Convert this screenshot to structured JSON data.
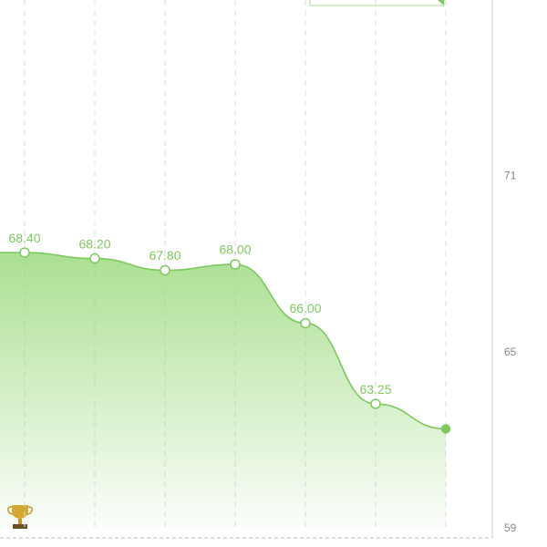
{
  "chart_data": {
    "type": "line",
    "categories": [
      null,
      null,
      null,
      null,
      null,
      null,
      null
    ],
    "values": [
      68.4,
      68.2,
      67.8,
      68.0,
      66.0,
      63.25,
      62.4
    ],
    "value_labels": [
      "68.40",
      "68.20",
      "67.80",
      "68.00",
      "66.00",
      "63.25",
      null
    ],
    "color": "#7dc95e",
    "ylim": [
      59,
      77
    ],
    "yticks": [
      59,
      65,
      71
    ],
    "grid": true
  }
}
